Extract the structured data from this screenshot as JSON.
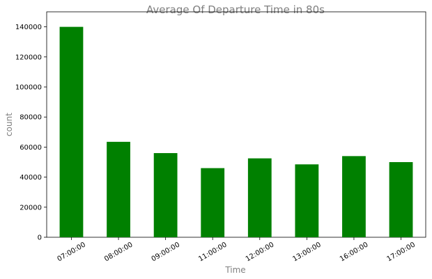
{
  "chart_data": {
    "type": "bar",
    "title": "Average Of Departure Time in 80s",
    "xlabel": "Time",
    "ylabel": "count",
    "categories": [
      "07:00:00",
      "08:00:00",
      "09:00:00",
      "11:00:00",
      "12:00:00",
      "13:00:00",
      "16:00:00",
      "17:00:00"
    ],
    "values": [
      140000,
      63500,
      56000,
      46000,
      52500,
      48500,
      54000,
      50000
    ],
    "ylim": [
      0,
      150000
    ],
    "yticks": [
      0,
      20000,
      40000,
      60000,
      80000,
      100000,
      120000,
      140000
    ],
    "bar_color": "#008000",
    "grid": false,
    "legend": "none"
  }
}
